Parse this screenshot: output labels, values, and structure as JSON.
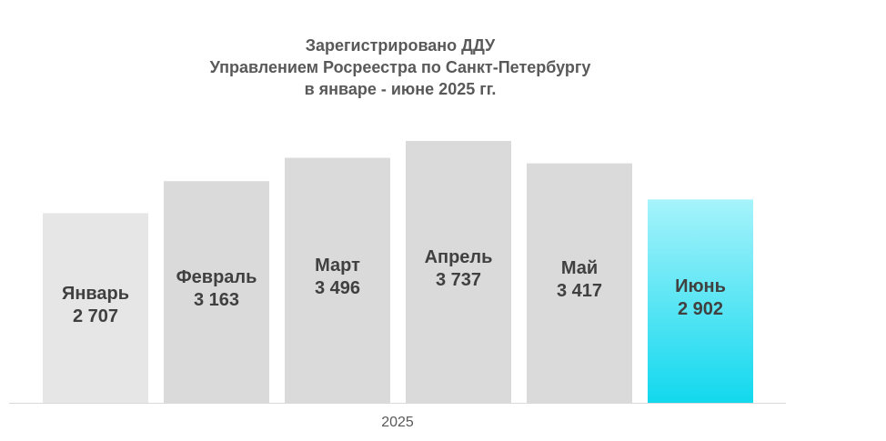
{
  "chart_data": {
    "type": "bar",
    "title": [
      "Зарегистрировано ДДУ",
      "Управлением Росреестра по Санкт-Петербургу",
      "в январе - июне 2025 гг."
    ],
    "categories": [
      "Январь",
      "Февраль",
      "Март",
      "Апрель",
      "Май",
      "Июнь"
    ],
    "values": [
      2707,
      3163,
      3496,
      3737,
      3417,
      2902
    ],
    "value_labels": [
      "2 707",
      "3 163",
      "3 496",
      "3 737",
      "3 417",
      "2 902"
    ],
    "x_group_label": "2025",
    "ylim": [
      0,
      3737
    ],
    "grid": false,
    "legend": "none",
    "colors": {
      "default_bar": "#dadada",
      "first_bar": "#e6e6e6",
      "highlight_top": "#a6f3fb",
      "highlight_bottom": "#12d8ee",
      "axis": "#d9d9d9",
      "label": "#404040"
    }
  }
}
